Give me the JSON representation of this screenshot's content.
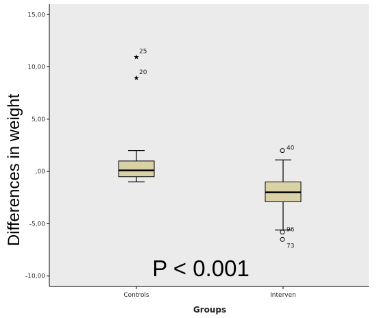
{
  "chart_data": {
    "type": "box",
    "xlabel": "Groups",
    "ylabel": "Differences in weight",
    "annotation": "P < 0.001",
    "ylim": [
      -11,
      16
    ],
    "yticks": [
      15,
      10,
      5,
      0,
      -5,
      -10
    ],
    "ytick_labels": [
      "15,00",
      "10,00",
      "5,00",
      ",00",
      "-5,00",
      "-10,00"
    ],
    "categories": [
      "Controls",
      "Interven"
    ],
    "grid": false,
    "colors": {
      "plot_background": "#ebebeb",
      "box_fill": "#d8d2a6",
      "median": "#000000",
      "axis": "#000000"
    },
    "boxes": [
      {
        "category": "Controls",
        "whisker_low": -1.0,
        "q1": -0.5,
        "median": 0.1,
        "q3": 1.0,
        "whisker_high": 2.0,
        "outliers": [],
        "extremes": [
          {
            "label": "25",
            "value": 11.0
          },
          {
            "label": "20",
            "value": 9.0
          }
        ]
      },
      {
        "category": "Interven",
        "whisker_low": -5.6,
        "q1": -2.9,
        "median": -2.0,
        "q3": -1.0,
        "whisker_high": 1.1,
        "outliers": [
          {
            "label": "40",
            "value": 2.0
          },
          {
            "label": "96",
            "value": -5.8
          },
          {
            "label": "73",
            "value": -6.5
          }
        ],
        "extremes": []
      }
    ]
  }
}
